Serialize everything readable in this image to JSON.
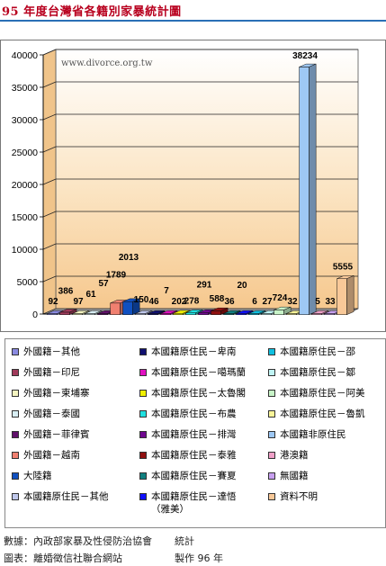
{
  "page": {
    "title": "95 年度台灣省各籍別家暴統計圖",
    "footer_source_label": "數據：內政部家暴及性侵防治協會",
    "footer_source_right": "統計",
    "footer_chart_label": "圖表：離婚徵信社聯合網站",
    "footer_chart_right": "製作 96 年"
  },
  "chart_data": {
    "type": "bar",
    "title": "95 年度台灣省各籍別家暴統計圖",
    "watermark": "www.divorce.org.tw",
    "ylim": [
      0,
      40000
    ],
    "yticks": [
      "0",
      "5000",
      "10000",
      "15000",
      "20000",
      "25000",
      "30000",
      "35000",
      "40000"
    ],
    "categories": [
      "外國籍-其他",
      "外國籍-印尼",
      "外國籍-柬埔寨",
      "外國籍-泰國",
      "外國籍-菲律賓",
      "外國籍-越南",
      "大陸籍",
      "本國籍原住民-其他",
      "本國籍原住民-卑南",
      "本國籍原住民-噶瑪蘭",
      "本國籍原住民-太魯閣",
      "本國籍原住民-布農",
      "本國籍原住民-排灣",
      "本國籍原住民-泰雅",
      "本國籍原住民-賽夏",
      "本國籍原住民-達悟（雅美）",
      "本國籍原住民-邵",
      "本國籍原住民-鄒",
      "本國籍原住民-阿美",
      "本國籍原住民-魯凱",
      "本國籍非原住民",
      "港澳籍",
      "無國籍",
      "資料不明"
    ],
    "values": [
      92,
      386,
      97,
      61,
      57,
      1789,
      2013,
      150,
      46,
      7,
      202,
      278,
      291,
      588,
      36,
      20,
      6,
      27,
      724,
      32,
      38234,
      5,
      33,
      5555
    ],
    "value_labels": [
      "92",
      "386",
      "97",
      "61",
      "57",
      "1789",
      "2013",
      "150",
      "46",
      "7",
      "202",
      "278",
      "291",
      "588",
      "36",
      "20",
      "6",
      "27",
      "724",
      "32",
      "38234",
      "5",
      "33",
      "5555"
    ],
    "colors": [
      "#8a8ae0",
      "#a03a5a",
      "#f4f4c0",
      "#d8eef4",
      "#60106a",
      "#f08070",
      "#1050c0",
      "#c0c8ec",
      "#101070",
      "#e010c0",
      "#f0f000",
      "#20e0e0",
      "#700890",
      "#901010",
      "#108080",
      "#1010ff",
      "#10c0e0",
      "#c0f4f4",
      "#c8f4c8",
      "#f8f498",
      "#9ec8f4",
      "#f0a0c8",
      "#c8a0f0",
      "#f8c898"
    ],
    "grid": true,
    "legend_position": "bottom"
  },
  "legend": {
    "items": [
      {
        "label": "外國籍－其他",
        "color": "#8a8ae0"
      },
      {
        "label": "本國籍原住民－卑南",
        "color": "#101070"
      },
      {
        "label": "本國籍原住民－邵",
        "color": "#10c0e0"
      },
      {
        "label": "外國籍－印尼",
        "color": "#a03a5a"
      },
      {
        "label": "本國籍原住民－噶瑪蘭",
        "color": "#e010c0"
      },
      {
        "label": "本國籍原住民－鄒",
        "color": "#c0f4f4"
      },
      {
        "label": "外國籍－柬埔寨",
        "color": "#f4f4c0"
      },
      {
        "label": "本國籍原住民－太魯閣",
        "color": "#f0f000"
      },
      {
        "label": "本國籍原住民－阿美",
        "color": "#c8f4c8"
      },
      {
        "label": "外國籍－泰國",
        "color": "#d8eef4"
      },
      {
        "label": "本國籍原住民－布農",
        "color": "#20e0e0"
      },
      {
        "label": "本國籍原住民－魯凱",
        "color": "#f8f498"
      },
      {
        "label": "外國籍－菲律賓",
        "color": "#60106a"
      },
      {
        "label": "本國籍原住民－排灣",
        "color": "#700890"
      },
      {
        "label": "本國籍非原住民",
        "color": "#9ec8f4"
      },
      {
        "label": "外國籍－越南",
        "color": "#f08070"
      },
      {
        "label": "本國籍原住民－泰雅",
        "color": "#901010"
      },
      {
        "label": "港澳籍",
        "color": "#f0a0c8"
      },
      {
        "label": "大陸籍",
        "color": "#1050c0"
      },
      {
        "label": "本國籍原住民－賽夏",
        "color": "#108080"
      },
      {
        "label": "無國籍",
        "color": "#c8a0f0"
      },
      {
        "label": "本國籍原住民－其他",
        "color": "#c0c8ec"
      },
      {
        "label": "本國籍原住民－達悟",
        "color": "#1010ff"
      },
      {
        "label": "資料不明",
        "color": "#f8c898"
      }
    ],
    "continuation": "（雅美）"
  }
}
